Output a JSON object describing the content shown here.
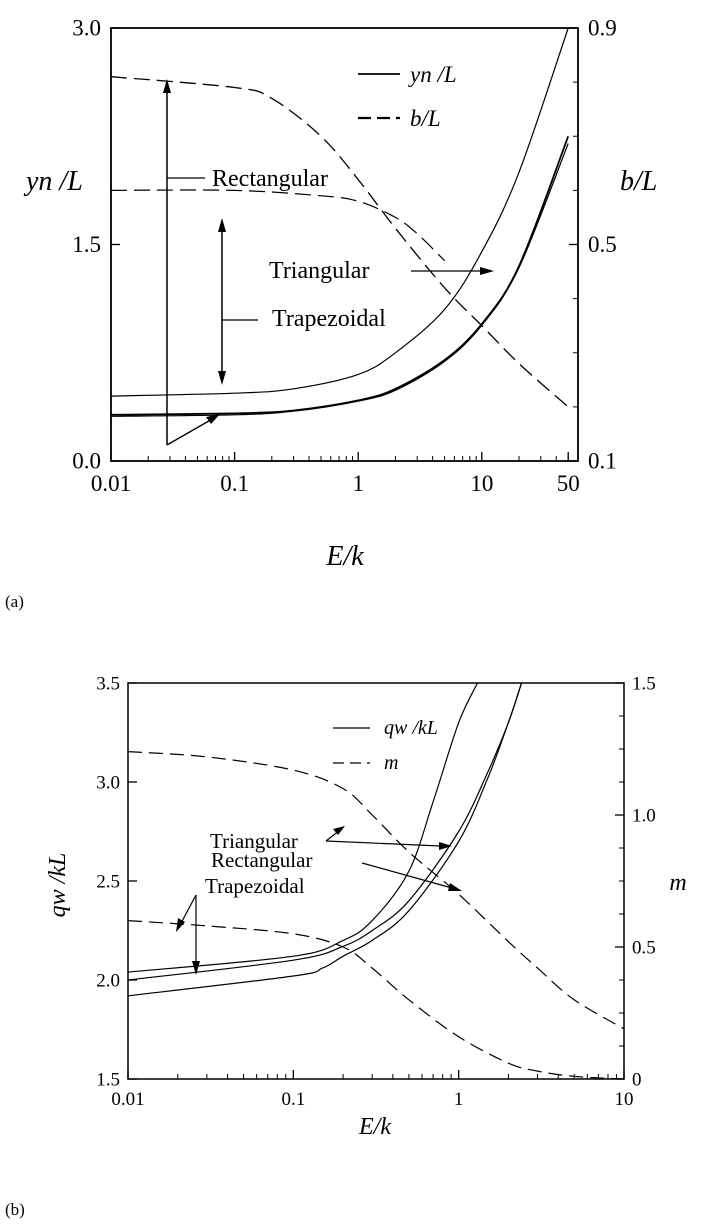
{
  "panel_labels": [
    "(a)",
    "(b)"
  ],
  "chart_data": [
    {
      "type": "line",
      "panel": "(a)",
      "xlabel": "E/k",
      "ylabel_left": "yn /L",
      "ylabel_right": "b/L",
      "xscale": "log",
      "xlim": [
        0.01,
        60
      ],
      "ylim_left": [
        0,
        3.0
      ],
      "ylim_right": [
        0.1,
        0.9
      ],
      "x_ticks": [
        {
          "v": 0.01,
          "label": "0.01"
        },
        {
          "v": 0.1,
          "label": "0.1"
        },
        {
          "v": 1,
          "label": "1"
        },
        {
          "v": 10,
          "label": "10"
        },
        {
          "v": 50,
          "label": "50"
        }
      ],
      "y_ticks_left": [
        {
          "v": 0,
          "label": "0.0"
        },
        {
          "v": 1.5,
          "label": "1.5"
        },
        {
          "v": 3.0,
          "label": "3.0"
        }
      ],
      "y_ticks_right": [
        {
          "v": 0.1,
          "label": "0.1"
        },
        {
          "v": 0.5,
          "label": "0.5"
        },
        {
          "v": 0.9,
          "label": "0.9"
        }
      ],
      "legend": [
        {
          "label": "yn /L",
          "style": "solid"
        },
        {
          "label": "b/L",
          "style": "dashed"
        }
      ],
      "legend_position": "top-right",
      "annotations": [
        "Rectangular",
        "Trapezoidal",
        "Triangular"
      ],
      "series": [
        {
          "style": "solid",
          "axis": "left",
          "x": [
            0.01,
            0.1,
            0.3,
            1,
            2,
            5,
            10,
            20,
            50
          ],
          "y": [
            0.45,
            0.47,
            0.5,
            0.6,
            0.75,
            1.05,
            1.45,
            2.0,
            3.0
          ]
        },
        {
          "style": "solid",
          "axis": "left",
          "x": [
            0.01,
            0.1,
            0.3,
            1,
            2,
            5,
            10,
            20,
            50
          ],
          "y": [
            0.32,
            0.33,
            0.35,
            0.42,
            0.5,
            0.7,
            0.95,
            1.35,
            2.25
          ]
        },
        {
          "style": "solid",
          "axis": "left",
          "x": [
            0.01,
            0.1,
            0.3,
            1,
            2,
            5,
            10,
            20,
            50
          ],
          "y": [
            0.31,
            0.32,
            0.345,
            0.415,
            0.49,
            0.69,
            0.94,
            1.34,
            2.2
          ]
        },
        {
          "style": "dashed",
          "axis": "right",
          "x": [
            0.01,
            0.1,
            0.2,
            0.5,
            1,
            2,
            5,
            10,
            20,
            50
          ],
          "y": [
            0.81,
            0.79,
            0.77,
            0.7,
            0.62,
            0.53,
            0.42,
            0.35,
            0.28,
            0.2
          ]
        },
        {
          "style": "dashed",
          "axis": "right",
          "x": [
            0.01,
            0.1,
            0.5,
            1,
            2,
            3,
            5
          ],
          "y": [
            0.6,
            0.6,
            0.59,
            0.58,
            0.55,
            0.52,
            0.47
          ]
        }
      ]
    },
    {
      "type": "line",
      "panel": "(b)",
      "xlabel": "E/k",
      "ylabel_left": "qw /kL",
      "ylabel_right": "m",
      "xscale": "log",
      "xlim": [
        0.01,
        10
      ],
      "ylim_left": [
        1.5,
        3.5
      ],
      "ylim_right": [
        0,
        1.5
      ],
      "x_ticks": [
        {
          "v": 0.01,
          "label": "0.01"
        },
        {
          "v": 0.1,
          "label": "0.1"
        },
        {
          "v": 1,
          "label": "1"
        },
        {
          "v": 10,
          "label": "10"
        }
      ],
      "y_ticks_left": [
        {
          "v": 1.5,
          "label": "1.5"
        },
        {
          "v": 2.0,
          "label": "2.0"
        },
        {
          "v": 2.5,
          "label": "2.5"
        },
        {
          "v": 3.0,
          "label": "3.0"
        },
        {
          "v": 3.5,
          "label": "3.5"
        }
      ],
      "y_ticks_right": [
        {
          "v": 0,
          "label": "0"
        },
        {
          "v": 0.5,
          "label": "0.5"
        },
        {
          "v": 1.0,
          "label": "1.0"
        },
        {
          "v": 1.5,
          "label": "1.5"
        }
      ],
      "legend": [
        {
          "label": "qw /kL",
          "style": "solid"
        },
        {
          "label": "m",
          "style": "dashed"
        }
      ],
      "legend_position": "top-right",
      "annotations": [
        "Triangular",
        "Rectangular",
        "Trapezoidal"
      ],
      "series": [
        {
          "style": "solid",
          "axis": "left",
          "x": [
            0.01,
            0.1,
            0.2,
            0.3,
            0.5,
            0.7,
            1.0,
            1.3
          ],
          "y": [
            2.04,
            2.12,
            2.2,
            2.3,
            2.55,
            2.9,
            3.3,
            3.5
          ]
        },
        {
          "style": "solid",
          "axis": "left",
          "x": [
            0.01,
            0.1,
            0.2,
            0.3,
            0.5,
            1.0,
            1.5,
            2.0,
            2.4
          ],
          "y": [
            2.0,
            2.1,
            2.17,
            2.25,
            2.4,
            2.75,
            3.05,
            3.3,
            3.5
          ]
        },
        {
          "style": "solid",
          "axis": "left",
          "x": [
            0.01,
            0.1,
            0.15,
            0.2,
            0.3,
            0.5,
            1.0,
            1.5,
            2.0,
            2.4
          ],
          "y": [
            1.92,
            2.02,
            2.06,
            2.12,
            2.2,
            2.35,
            2.7,
            3.02,
            3.3,
            3.5
          ]
        },
        {
          "style": "dashed",
          "axis": "right",
          "x": [
            0.01,
            0.03,
            0.1,
            0.2,
            0.3,
            0.5,
            1,
            2,
            3,
            5,
            10
          ],
          "y": [
            1.24,
            1.22,
            1.17,
            1.1,
            1.0,
            0.86,
            0.7,
            0.52,
            0.42,
            0.3,
            0.19
          ]
        },
        {
          "style": "dashed",
          "axis": "right",
          "x": [
            0.01,
            0.03,
            0.1,
            0.2,
            0.3,
            0.5,
            1,
            2,
            3,
            5,
            10
          ],
          "y": [
            0.6,
            0.58,
            0.55,
            0.5,
            0.42,
            0.3,
            0.16,
            0.06,
            0.03,
            0.01,
            0.0
          ]
        }
      ]
    }
  ]
}
